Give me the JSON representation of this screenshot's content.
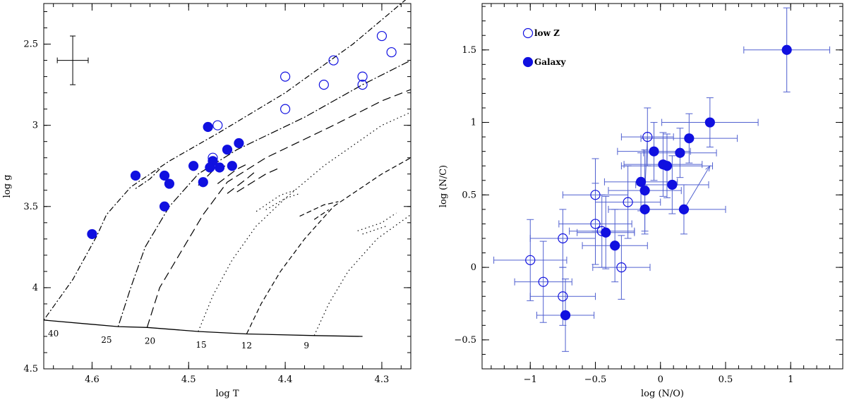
{
  "colors": {
    "marker": "#1010e0",
    "errorbar": "#5060d0",
    "axis": "#000000"
  },
  "chart_data": [
    {
      "type": "scatter",
      "xlabel": "log T",
      "ylabel": "log g",
      "xlim": [
        4.65,
        4.27
      ],
      "ylim": [
        4.5,
        2.25
      ],
      "xticks": [
        {
          "v": 4.6,
          "label": "4.6"
        },
        {
          "v": 4.5,
          "label": "4.5"
        },
        {
          "v": 4.4,
          "label": "4.4"
        },
        {
          "v": 4.3,
          "label": "4.3"
        }
      ],
      "yticks": [
        {
          "v": 2.5,
          "label": "2.5"
        },
        {
          "v": 3.0,
          "label": "3"
        },
        {
          "v": 3.5,
          "label": "3.5"
        },
        {
          "v": 4.0,
          "label": "4"
        },
        {
          "v": 4.5,
          "label": "4.5"
        }
      ],
      "typical_error": {
        "x": 4.62,
        "y": 2.6,
        "dx": 0.016,
        "dy": 0.15
      },
      "zams": [
        [
          4.65,
          4.2
        ],
        [
          4.573,
          4.24
        ],
        [
          4.543,
          4.245
        ],
        [
          4.49,
          4.27
        ],
        [
          4.44,
          4.285
        ],
        [
          4.37,
          4.295
        ],
        [
          4.32,
          4.3
        ]
      ],
      "mass_labels": [
        {
          "label": "40",
          "x": 4.64,
          "y": 4.3
        },
        {
          "label": "25",
          "x": 4.585,
          "y": 4.34
        },
        {
          "label": "20",
          "x": 4.54,
          "y": 4.345
        },
        {
          "label": "15",
          "x": 4.487,
          "y": 4.37
        },
        {
          "label": "12",
          "x": 4.44,
          "y": 4.375
        },
        {
          "label": "9",
          "x": 4.378,
          "y": 4.375
        }
      ],
      "tracks": [
        {
          "mass": "40",
          "dash": "2 3 8 3",
          "points": [
            [
              4.65,
              4.2
            ],
            [
              4.62,
              3.95
            ],
            [
              4.595,
              3.68
            ],
            [
              4.585,
              3.55
            ],
            [
              4.56,
              3.38
            ],
            [
              4.52,
              3.22
            ],
            [
              4.47,
              3.05
            ],
            [
              4.4,
              2.8
            ],
            [
              4.33,
              2.5
            ],
            [
              4.27,
              2.2
            ]
          ]
        },
        {
          "mass": "40b",
          "dash": "2 3 8 3",
          "points": [
            [
              4.555,
              3.39
            ],
            [
              4.54,
              3.33
            ],
            [
              4.53,
              3.27
            ]
          ]
        },
        {
          "mass": "25",
          "dash": "2 3 11 3",
          "points": [
            [
              4.573,
              4.24
            ],
            [
              4.56,
              4.0
            ],
            [
              4.545,
              3.75
            ],
            [
              4.52,
              3.5
            ],
            [
              4.49,
              3.3
            ],
            [
              4.45,
              3.15
            ],
            [
              4.38,
              2.95
            ],
            [
              4.32,
              2.75
            ],
            [
              4.27,
              2.6
            ]
          ]
        },
        {
          "mass": "20",
          "dash": "12 6",
          "points": [
            [
              4.543,
              4.245
            ],
            [
              4.53,
              4.0
            ],
            [
              4.51,
              3.8
            ],
            [
              4.485,
              3.55
            ],
            [
              4.46,
              3.35
            ],
            [
              4.42,
              3.2
            ],
            [
              4.35,
              3.0
            ],
            [
              4.3,
              2.85
            ],
            [
              4.27,
              2.78
            ]
          ]
        },
        {
          "mass": "15",
          "dash": "1.5 4",
          "points": [
            [
              4.49,
              4.27
            ],
            [
              4.475,
              4.05
            ],
            [
              4.455,
              3.83
            ],
            [
              4.43,
              3.62
            ],
            [
              4.4,
              3.45
            ],
            [
              4.36,
              3.25
            ],
            [
              4.3,
              3.0
            ],
            [
              4.27,
              2.92
            ]
          ]
        },
        {
          "mass": "12",
          "dash": "7 4",
          "points": [
            [
              4.44,
              4.285
            ],
            [
              4.425,
              4.1
            ],
            [
              4.405,
              3.9
            ],
            [
              4.38,
              3.7
            ],
            [
              4.35,
              3.5
            ],
            [
              4.3,
              3.3
            ],
            [
              4.27,
              3.2
            ]
          ]
        },
        {
          "mass": "9",
          "dash": "1.5 4",
          "points": [
            [
              4.37,
              4.295
            ],
            [
              4.355,
              4.1
            ],
            [
              4.335,
              3.9
            ],
            [
              4.305,
              3.7
            ],
            [
              4.27,
              3.55
            ]
          ]
        }
      ],
      "loops": [
        {
          "dash": "12 6",
          "points": [
            [
              4.49,
              3.37
            ],
            [
              4.475,
              3.28
            ],
            [
              4.462,
              3.25
            ]
          ]
        },
        {
          "dash": "12 6",
          "points": [
            [
              4.47,
              3.36
            ],
            [
              4.45,
              3.27
            ],
            [
              4.44,
              3.24
            ]
          ]
        },
        {
          "dash": "12 6",
          "points": [
            [
              4.46,
              3.42
            ],
            [
              4.44,
              3.33
            ],
            [
              4.43,
              3.28
            ]
          ]
        },
        {
          "dash": "12 6",
          "points": [
            [
              4.45,
              3.41
            ],
            [
              4.42,
              3.3
            ],
            [
              4.405,
              3.26
            ]
          ]
        },
        {
          "dash": "1.5 4",
          "points": [
            [
              4.43,
              3.53
            ],
            [
              4.405,
              3.43
            ],
            [
              4.39,
              3.4
            ]
          ]
        },
        {
          "dash": "1.5 4",
          "points": [
            [
              4.42,
              3.52
            ],
            [
              4.4,
              3.45
            ],
            [
              4.385,
              3.42
            ]
          ]
        },
        {
          "dash": "7 4",
          "points": [
            [
              4.385,
              3.56
            ],
            [
              4.36,
              3.49
            ],
            [
              4.345,
              3.47
            ]
          ]
        },
        {
          "dash": "7 4",
          "points": [
            [
              4.37,
              3.58
            ],
            [
              4.355,
              3.52
            ]
          ]
        },
        {
          "dash": "1.5 4",
          "points": [
            [
              4.325,
              3.65
            ],
            [
              4.3,
              3.6
            ],
            [
              4.285,
              3.54
            ]
          ]
        },
        {
          "dash": "1.5 4",
          "points": [
            [
              4.32,
              3.67
            ],
            [
              4.295,
              3.62
            ]
          ]
        }
      ],
      "series": [
        {
          "name": "low Z",
          "filled": false,
          "points": [
            [
              4.3,
              2.45
            ],
            [
              4.29,
              2.55
            ],
            [
              4.35,
              2.6
            ],
            [
              4.32,
              2.7
            ],
            [
              4.32,
              2.75
            ],
            [
              4.36,
              2.75
            ],
            [
              4.4,
              2.7
            ],
            [
              4.4,
              2.9
            ],
            [
              4.47,
              3.0
            ],
            [
              4.475,
              3.2
            ]
          ]
        },
        {
          "name": "Galaxy",
          "filled": true,
          "points": [
            [
              4.6,
              3.67
            ],
            [
              4.555,
              3.31
            ],
            [
              4.525,
              3.31
            ],
            [
              4.52,
              3.36
            ],
            [
              4.525,
              3.5
            ],
            [
              4.495,
              3.25
            ],
            [
              4.485,
              3.35
            ],
            [
              4.48,
              3.01
            ],
            [
              4.475,
              3.22
            ],
            [
              4.478,
              3.26
            ],
            [
              4.468,
              3.26
            ],
            [
              4.46,
              3.15
            ],
            [
              4.455,
              3.25
            ],
            [
              4.448,
              3.11
            ]
          ]
        }
      ]
    },
    {
      "type": "scatter",
      "xlabel": "log (N/O)",
      "ylabel": "log (N/C)",
      "xlim": [
        -1.37,
        1.4
      ],
      "ylim": [
        -0.7,
        1.82
      ],
      "xticks": [
        {
          "v": -1,
          "label": "−1"
        },
        {
          "v": -0.5,
          "label": "−0.5"
        },
        {
          "v": 0,
          "label": "0"
        },
        {
          "v": 0.5,
          "label": "0.5"
        },
        {
          "v": 1,
          "label": "1"
        }
      ],
      "yticks": [
        {
          "v": -0.5,
          "label": "−0.5"
        },
        {
          "v": 0,
          "label": "0"
        },
        {
          "v": 0.5,
          "label": "0.5"
        },
        {
          "v": 1,
          "label": "1"
        },
        {
          "v": 1.5,
          "label": "1.5"
        }
      ],
      "legend": [
        {
          "label": "low Z",
          "filled": false
        },
        {
          "label": "Galaxy",
          "filled": true
        }
      ],
      "series": [
        {
          "name": "low Z",
          "filled": false,
          "points": [
            {
              "x": -1.0,
              "y": 0.05,
              "xerr": 0.28,
              "yerr": 0.28
            },
            {
              "x": -0.9,
              "y": -0.1,
              "xerr": 0.22,
              "yerr": 0.28
            },
            {
              "x": -0.75,
              "y": 0.2,
              "xerr": 0.25,
              "yerr": 0.2
            },
            {
              "x": -0.75,
              "y": -0.2,
              "xerr": 0.25,
              "yerr": 0.2
            },
            {
              "x": -0.5,
              "y": 0.5,
              "xerr": 0.25,
              "yerr": 0.25
            },
            {
              "x": -0.5,
              "y": 0.3,
              "xerr": 0.28,
              "yerr": 0.28
            },
            {
              "x": -0.45,
              "y": 0.25,
              "xerr": 0.25,
              "yerr": 0.25
            },
            {
              "x": -0.3,
              "y": 0.0,
              "xerr": 0.22,
              "yerr": 0.22
            },
            {
              "x": -0.25,
              "y": 0.45,
              "xerr": 0.25,
              "yerr": 0.25
            },
            {
              "x": -0.1,
              "y": 0.9,
              "xerr": 0.2,
              "yerr": 0.2
            }
          ]
        },
        {
          "name": "Galaxy",
          "filled": true,
          "points": [
            {
              "x": 0.97,
              "y": 1.5,
              "xerr": 0.33,
              "yerr": 0.29
            },
            {
              "x": 0.38,
              "y": 1.0,
              "xerr": 0.37,
              "yerr": 0.17
            },
            {
              "x": 0.22,
              "y": 0.89,
              "xerr": 0.37,
              "yerr": 0.17
            },
            {
              "x": 0.15,
              "y": 0.79,
              "xerr": 0.28,
              "yerr": 0.17
            },
            {
              "x": -0.05,
              "y": 0.8,
              "xerr": 0.28,
              "yerr": 0.2
            },
            {
              "x": 0.02,
              "y": 0.71,
              "xerr": 0.3,
              "yerr": 0.22
            },
            {
              "x": 0.05,
              "y": 0.7,
              "xerr": 0.35,
              "yerr": 0.22
            },
            {
              "x": -0.15,
              "y": 0.59,
              "xerr": 0.28,
              "yerr": 0.2
            },
            {
              "x": -0.12,
              "y": 0.53,
              "xerr": 0.28,
              "yerr": 0.28
            },
            {
              "x": 0.09,
              "y": 0.57,
              "xerr": 0.28,
              "yerr": 0.2
            },
            {
              "x": -0.12,
              "y": 0.4,
              "xerr": 0.28,
              "yerr": 0.17
            },
            {
              "x": 0.18,
              "y": 0.4,
              "xerr": 0.32,
              "yerr": 0.17
            },
            {
              "x": -0.42,
              "y": 0.24,
              "xerr": 0.22,
              "yerr": 0.25
            },
            {
              "x": -0.35,
              "y": 0.15,
              "xerr": 0.25,
              "yerr": 0.25
            },
            {
              "x": -0.73,
              "y": -0.33,
              "xerr": 0.22,
              "yerr": 0.25
            }
          ]
        }
      ],
      "arrows": [
        {
          "from": [
            -0.1,
            0.9
          ],
          "to": [
            -0.12,
            0.53
          ]
        },
        {
          "from": [
            0.18,
            0.4
          ],
          "to": [
            0.38,
            0.7
          ]
        }
      ]
    }
  ]
}
